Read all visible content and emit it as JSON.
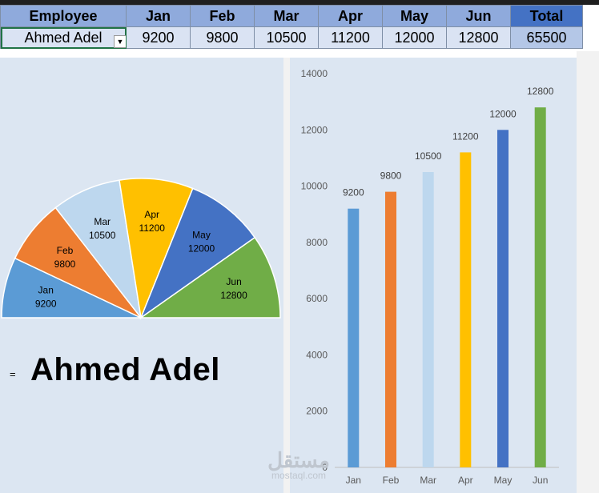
{
  "table": {
    "headers": [
      "Employee",
      "Jan",
      "Feb",
      "Mar",
      "Apr",
      "May",
      "Jun",
      "Total"
    ],
    "row": {
      "employee": "Ahmed Adel",
      "values": [
        "9200",
        "9800",
        "10500",
        "11200",
        "12000",
        "12800"
      ],
      "total": "65500"
    }
  },
  "dropdown_icon": "triangle-down",
  "display_name": "Ahmed Adel",
  "name_prefix": "=",
  "watermark": {
    "arabic": "مستقل",
    "latin": "mostaql.com"
  },
  "chart_data": [
    {
      "type": "pie",
      "style": "half-donut-semicircle",
      "categories": [
        "Jan",
        "Feb",
        "Mar",
        "Apr",
        "May",
        "Jun"
      ],
      "values": [
        9200,
        9800,
        10500,
        11200,
        12000,
        12800
      ],
      "colors": [
        "#5b9bd5",
        "#ed7d31",
        "#bdd7ee",
        "#ffc000",
        "#4472c4",
        "#70ad47"
      ]
    },
    {
      "type": "bar",
      "categories": [
        "Jan",
        "Feb",
        "Mar",
        "Apr",
        "May",
        "Jun"
      ],
      "values": [
        9200,
        9800,
        10500,
        11200,
        12000,
        12800
      ],
      "ylim": [
        0,
        14000
      ],
      "yticks": [
        0,
        2000,
        4000,
        6000,
        8000,
        10000,
        12000,
        14000
      ],
      "colors": [
        "#5b9bd5",
        "#ed7d31",
        "#bdd7ee",
        "#ffc000",
        "#4472c4",
        "#70ad47"
      ],
      "grid": false
    }
  ]
}
